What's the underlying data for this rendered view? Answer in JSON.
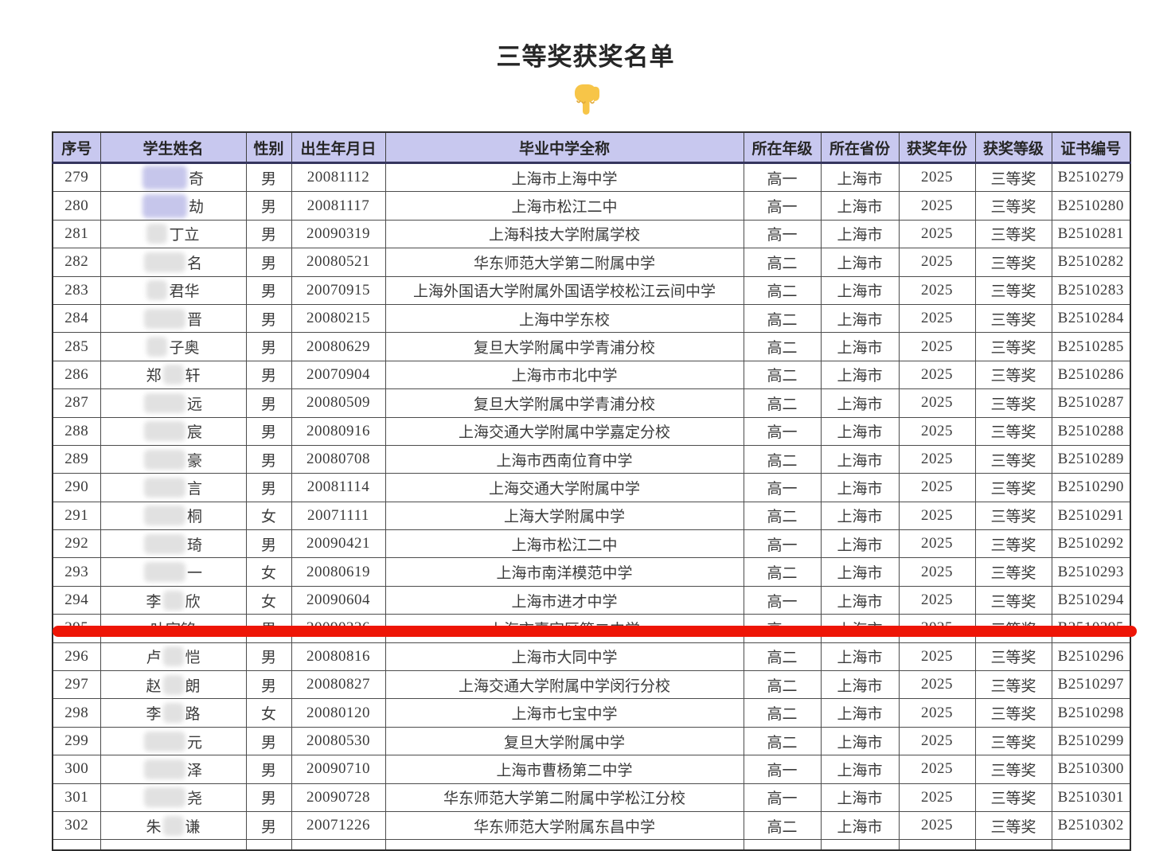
{
  "title": "三等奖获奖名单",
  "pointer_icon": "backhand-index-pointing-down",
  "colors": {
    "header_bg": "#c8c8ef",
    "header_rule": "#35355e",
    "highlight_red": "#ee1506",
    "smudge_gray": "#d7d7d7",
    "smudge_lavender": "#c3c3ea",
    "pointer_yellow": "#f7c548"
  },
  "table": {
    "columns": [
      "序号",
      "学生姓名",
      "性别",
      "出生年月日",
      "毕业中学全称",
      "所在年级",
      "所在省份",
      "获奖年份",
      "获奖等级",
      "证书编号"
    ],
    "rows": [
      {
        "no": "279",
        "name_lead": "",
        "name_tail": "奇",
        "smudge": "lav-wide",
        "gender": "男",
        "dob": "20081112",
        "school": "上海市上海中学",
        "grade": "高一",
        "province": "上海市",
        "year": "2025",
        "award": "三等奖",
        "cert": "B2510279",
        "highlighted": false
      },
      {
        "no": "280",
        "name_lead": "",
        "name_tail": "劫",
        "smudge": "lav-wide",
        "gender": "男",
        "dob": "20081117",
        "school": "上海市松江二中",
        "grade": "高一",
        "province": "上海市",
        "year": "2025",
        "award": "三等奖",
        "cert": "B2510280",
        "highlighted": false
      },
      {
        "no": "281",
        "name_lead": "",
        "name_tail": "丁立",
        "smudge": "narrow",
        "gender": "男",
        "dob": "20090319",
        "school": "上海科技大学附属学校",
        "grade": "高一",
        "province": "上海市",
        "year": "2025",
        "award": "三等奖",
        "cert": "B2510281",
        "highlighted": false
      },
      {
        "no": "282",
        "name_lead": "",
        "name_tail": "名",
        "smudge": "wide",
        "gender": "男",
        "dob": "20080521",
        "school": "华东师范大学第二附属中学",
        "grade": "高二",
        "province": "上海市",
        "year": "2025",
        "award": "三等奖",
        "cert": "B2510282",
        "highlighted": false
      },
      {
        "no": "283",
        "name_lead": "",
        "name_tail": "君华",
        "smudge": "narrow",
        "gender": "男",
        "dob": "20070915",
        "school": "上海外国语大学附属外国语学校松江云间中学",
        "grade": "高二",
        "province": "上海市",
        "year": "2025",
        "award": "三等奖",
        "cert": "B2510283",
        "highlighted": false
      },
      {
        "no": "284",
        "name_lead": "",
        "name_tail": "晋",
        "smudge": "wide",
        "gender": "男",
        "dob": "20080215",
        "school": "上海中学东校",
        "grade": "高二",
        "province": "上海市",
        "year": "2025",
        "award": "三等奖",
        "cert": "B2510284",
        "highlighted": false
      },
      {
        "no": "285",
        "name_lead": "",
        "name_tail": "子奥",
        "smudge": "narrow",
        "gender": "男",
        "dob": "20080629",
        "school": "复旦大学附属中学青浦分校",
        "grade": "高二",
        "province": "上海市",
        "year": "2025",
        "award": "三等奖",
        "cert": "B2510285",
        "highlighted": false
      },
      {
        "no": "286",
        "name_lead": "郑",
        "name_tail": "轩",
        "smudge": "narrow",
        "gender": "男",
        "dob": "20070904",
        "school": "上海市市北中学",
        "grade": "高二",
        "province": "上海市",
        "year": "2025",
        "award": "三等奖",
        "cert": "B2510286",
        "highlighted": false
      },
      {
        "no": "287",
        "name_lead": "",
        "name_tail": "远",
        "smudge": "wide",
        "gender": "男",
        "dob": "20080509",
        "school": "复旦大学附属中学青浦分校",
        "grade": "高二",
        "province": "上海市",
        "year": "2025",
        "award": "三等奖",
        "cert": "B2510287",
        "highlighted": false
      },
      {
        "no": "288",
        "name_lead": "",
        "name_tail": "宸",
        "smudge": "wide",
        "gender": "男",
        "dob": "20080916",
        "school": "上海交通大学附属中学嘉定分校",
        "grade": "高一",
        "province": "上海市",
        "year": "2025",
        "award": "三等奖",
        "cert": "B2510288",
        "highlighted": false
      },
      {
        "no": "289",
        "name_lead": "",
        "name_tail": "豪",
        "smudge": "wide",
        "gender": "男",
        "dob": "20080708",
        "school": "上海市西南位育中学",
        "grade": "高二",
        "province": "上海市",
        "year": "2025",
        "award": "三等奖",
        "cert": "B2510289",
        "highlighted": false
      },
      {
        "no": "290",
        "name_lead": "",
        "name_tail": "言",
        "smudge": "wide",
        "gender": "男",
        "dob": "20081114",
        "school": "上海交通大学附属中学",
        "grade": "高一",
        "province": "上海市",
        "year": "2025",
        "award": "三等奖",
        "cert": "B2510290",
        "highlighted": false
      },
      {
        "no": "291",
        "name_lead": "",
        "name_tail": "桐",
        "smudge": "wide",
        "gender": "女",
        "dob": "20071111",
        "school": "上海大学附属中学",
        "grade": "高二",
        "province": "上海市",
        "year": "2025",
        "award": "三等奖",
        "cert": "B2510291",
        "highlighted": false
      },
      {
        "no": "292",
        "name_lead": "",
        "name_tail": "琦",
        "smudge": "wide",
        "gender": "男",
        "dob": "20090421",
        "school": "上海市松江二中",
        "grade": "高一",
        "province": "上海市",
        "year": "2025",
        "award": "三等奖",
        "cert": "B2510292",
        "highlighted": false
      },
      {
        "no": "293",
        "name_lead": "",
        "name_tail": "一",
        "smudge": "wide",
        "gender": "女",
        "dob": "20080619",
        "school": "上海市南洋模范中学",
        "grade": "高二",
        "province": "上海市",
        "year": "2025",
        "award": "三等奖",
        "cert": "B2510293",
        "highlighted": false
      },
      {
        "no": "294",
        "name_lead": "李",
        "name_tail": "欣",
        "smudge": "narrow",
        "gender": "女",
        "dob": "20090604",
        "school": "上海市进才中学",
        "grade": "高一",
        "province": "上海市",
        "year": "2025",
        "award": "三等奖",
        "cert": "B2510294",
        "highlighted": false
      },
      {
        "no": "295",
        "name_lead": "叶宇铭",
        "name_tail": "",
        "smudge": "none",
        "gender": "男",
        "dob": "20090226",
        "school": "上海市嘉定区第二中学",
        "grade": "高一",
        "province": "上海市",
        "year": "2025",
        "award": "三等奖",
        "cert": "B2510295",
        "highlighted": true
      },
      {
        "no": "296",
        "name_lead": "卢",
        "name_tail": "恺",
        "smudge": "narrow",
        "gender": "男",
        "dob": "20080816",
        "school": "上海市大同中学",
        "grade": "高二",
        "province": "上海市",
        "year": "2025",
        "award": "三等奖",
        "cert": "B2510296",
        "highlighted": false
      },
      {
        "no": "297",
        "name_lead": "赵",
        "name_tail": "朗",
        "smudge": "narrow",
        "gender": "男",
        "dob": "20080827",
        "school": "上海交通大学附属中学闵行分校",
        "grade": "高二",
        "province": "上海市",
        "year": "2025",
        "award": "三等奖",
        "cert": "B2510297",
        "highlighted": false
      },
      {
        "no": "298",
        "name_lead": "李",
        "name_tail": "路",
        "smudge": "narrow",
        "gender": "女",
        "dob": "20080120",
        "school": "上海市七宝中学",
        "grade": "高二",
        "province": "上海市",
        "year": "2025",
        "award": "三等奖",
        "cert": "B2510298",
        "highlighted": false
      },
      {
        "no": "299",
        "name_lead": "",
        "name_tail": "元",
        "smudge": "wide",
        "gender": "男",
        "dob": "20080530",
        "school": "复旦大学附属中学",
        "grade": "高二",
        "province": "上海市",
        "year": "2025",
        "award": "三等奖",
        "cert": "B2510299",
        "highlighted": false
      },
      {
        "no": "300",
        "name_lead": "",
        "name_tail": "泽",
        "smudge": "wide",
        "gender": "男",
        "dob": "20090710",
        "school": "上海市曹杨第二中学",
        "grade": "高一",
        "province": "上海市",
        "year": "2025",
        "award": "三等奖",
        "cert": "B2510300",
        "highlighted": false
      },
      {
        "no": "301",
        "name_lead": "",
        "name_tail": "尧",
        "smudge": "wide",
        "gender": "男",
        "dob": "20090728",
        "school": "华东师范大学第二附属中学松江分校",
        "grade": "高一",
        "province": "上海市",
        "year": "2025",
        "award": "三等奖",
        "cert": "B2510301",
        "highlighted": false
      },
      {
        "no": "302",
        "name_lead": "朱",
        "name_tail": "谦",
        "smudge": "narrow",
        "gender": "男",
        "dob": "20071226",
        "school": "华东师范大学附属东昌中学",
        "grade": "高二",
        "province": "上海市",
        "year": "2025",
        "award": "三等奖",
        "cert": "B2510302",
        "highlighted": false
      }
    ]
  }
}
